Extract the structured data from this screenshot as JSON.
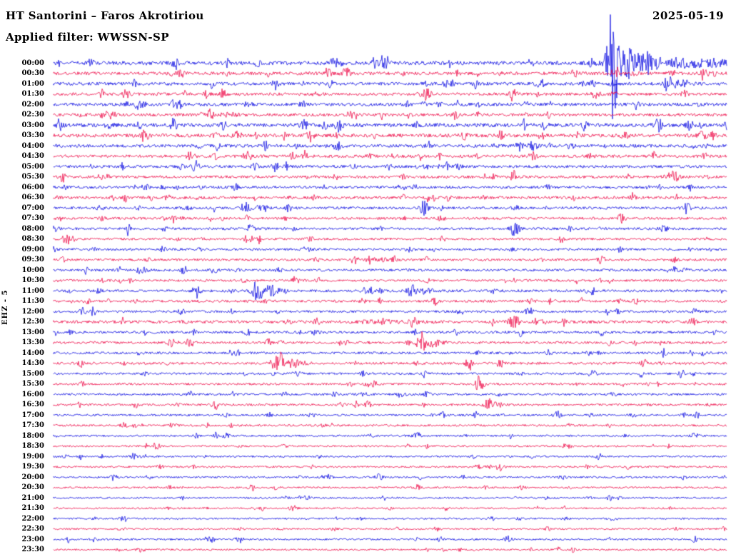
{
  "header": {
    "station_title": "HT Santorini – Faros Akrotiriou",
    "date": "2025-05-19",
    "filter_label": "Applied filter: WWSSN-SP",
    "channel_label": "EHZ - 5"
  },
  "colors": {
    "background": "#ffffff",
    "text": "#000000",
    "trace_blue": "#0000e0",
    "trace_red": "#ee0040"
  },
  "chart_data": {
    "type": "line",
    "title": "HT Santorini – Faros Akrotiriou",
    "subtitle": "Applied filter: WWSSN-SP",
    "date": "2025-05-19",
    "ylabel": "EHZ - 5",
    "layout": {
      "rows": 48,
      "minutes_per_row": 30,
      "row_color_pattern": [
        "blue",
        "red"
      ],
      "legend": "none",
      "grid": false
    },
    "row_times": [
      "00:00",
      "00:30",
      "01:00",
      "01:30",
      "02:00",
      "02:30",
      "03:00",
      "03:30",
      "04:00",
      "04:30",
      "05:00",
      "05:30",
      "06:00",
      "06:30",
      "07:00",
      "07:30",
      "08:00",
      "08:30",
      "09:00",
      "09:30",
      "10:00",
      "10:30",
      "11:00",
      "11:30",
      "12:00",
      "12:30",
      "13:00",
      "13:30",
      "14:00",
      "14:30",
      "15:00",
      "15:30",
      "16:00",
      "16:30",
      "17:00",
      "17:30",
      "18:00",
      "18:30",
      "19:00",
      "19:30",
      "20:00",
      "20:30",
      "21:00",
      "21:30",
      "22:00",
      "22:30",
      "23:00",
      "23:30"
    ],
    "row_noise": [
      2.6,
      2.2,
      2.2,
      2.0,
      2.2,
      2.0,
      2.6,
      2.4,
      2.2,
      2.0,
      1.9,
      1.9,
      1.8,
      1.9,
      1.8,
      1.7,
      1.7,
      1.6,
      1.6,
      1.6,
      1.7,
      1.6,
      1.8,
      1.7,
      1.6,
      2.0,
      1.7,
      1.7,
      1.6,
      1.7,
      1.5,
      1.5,
      1.5,
      1.5,
      1.4,
      1.4,
      1.3,
      1.3,
      1.3,
      1.3,
      1.3,
      1.2,
      1.2,
      1.2,
      1.2,
      1.2,
      1.3,
      1.2
    ],
    "events": [
      {
        "row": 0,
        "time": "00:00",
        "x": 0.302,
        "amp": 4,
        "sigma": 2
      },
      {
        "row": 0,
        "time": "00:00",
        "x": 0.8,
        "amp": 6,
        "sigma": 3
      },
      {
        "row": 0,
        "time": "00:00",
        "x": 0.83,
        "amp": 68,
        "sigma": 5,
        "spiky": true
      },
      {
        "row": 0,
        "time": "00:00",
        "x": 0.842,
        "amp": 34,
        "sigma": 9
      },
      {
        "row": 0,
        "time": "00:00",
        "x": 0.87,
        "amp": 10,
        "sigma": 18
      },
      {
        "row": 0,
        "time": "00:00",
        "x": 0.93,
        "amp": 5,
        "sigma": 30
      },
      {
        "row": 0,
        "time": "00:00",
        "x": 0.985,
        "amp": 3.5,
        "sigma": 15
      },
      {
        "row": 1,
        "time": "00:30",
        "x": 0.175,
        "amp": 3,
        "sigma": 2
      },
      {
        "row": 1,
        "time": "00:30",
        "x": 0.6,
        "amp": 3,
        "sigma": 2
      },
      {
        "row": 1,
        "time": "00:30",
        "x": 0.83,
        "amp": 3.5,
        "sigma": 4
      },
      {
        "row": 2,
        "time": "01:00",
        "x": 0.83,
        "amp": 3,
        "sigma": 3
      },
      {
        "row": 2,
        "time": "01:00",
        "x": 0.917,
        "amp": 9,
        "sigma": 4
      },
      {
        "row": 2,
        "time": "01:00",
        "x": 0.935,
        "amp": 4,
        "sigma": 10
      },
      {
        "row": 3,
        "time": "01:30",
        "x": 0.25,
        "amp": 3,
        "sigma": 2
      },
      {
        "row": 3,
        "time": "01:30",
        "x": 0.68,
        "amp": 3,
        "sigma": 2
      },
      {
        "row": 4,
        "time": "02:00",
        "x": 0.11,
        "amp": 3,
        "sigma": 2
      },
      {
        "row": 4,
        "time": "02:00",
        "x": 0.55,
        "amp": 2.5,
        "sigma": 2
      },
      {
        "row": 5,
        "time": "02:30",
        "x": 0.233,
        "amp": 7,
        "sigma": 4
      },
      {
        "row": 5,
        "time": "02:30",
        "x": 0.26,
        "amp": 3,
        "sigma": 8
      },
      {
        "row": 5,
        "time": "02:30",
        "x": 0.63,
        "amp": 3,
        "sigma": 2
      },
      {
        "row": 6,
        "time": "03:00",
        "x": 0.54,
        "amp": 3.5,
        "sigma": 2
      },
      {
        "row": 6,
        "time": "03:00",
        "x": 0.95,
        "amp": 3,
        "sigma": 2
      },
      {
        "row": 7,
        "time": "03:30",
        "x": 0.42,
        "amp": 3,
        "sigma": 2
      },
      {
        "row": 7,
        "time": "03:30",
        "x": 0.72,
        "amp": 3,
        "sigma": 2
      },
      {
        "row": 8,
        "time": "04:00",
        "x": 0.36,
        "amp": 2.5,
        "sigma": 2
      },
      {
        "row": 9,
        "time": "04:30",
        "x": 0.355,
        "amp": 4,
        "sigma": 2.5
      },
      {
        "row": 9,
        "time": "04:30",
        "x": 0.63,
        "amp": 3,
        "sigma": 2
      },
      {
        "row": 10,
        "time": "05:00",
        "x": 0.498,
        "amp": 3.5,
        "sigma": 2.5
      },
      {
        "row": 11,
        "time": "05:30",
        "x": 0.52,
        "amp": 3,
        "sigma": 2
      },
      {
        "row": 12,
        "time": "06:00",
        "x": 0.52,
        "amp": 3,
        "sigma": 2
      },
      {
        "row": 12,
        "time": "06:00",
        "x": 0.9,
        "amp": 2.5,
        "sigma": 2
      },
      {
        "row": 13,
        "time": "06:30",
        "x": 0.17,
        "amp": 4,
        "sigma": 2.5
      },
      {
        "row": 13,
        "time": "06:30",
        "x": 0.3,
        "amp": 3,
        "sigma": 2
      },
      {
        "row": 13,
        "time": "06:30",
        "x": 0.52,
        "amp": 3.5,
        "sigma": 2
      },
      {
        "row": 14,
        "time": "07:00",
        "x": 0.285,
        "amp": 8,
        "sigma": 4
      },
      {
        "row": 14,
        "time": "07:00",
        "x": 0.31,
        "amp": 3,
        "sigma": 8
      },
      {
        "row": 15,
        "time": "07:30",
        "x": 0.52,
        "amp": 2.5,
        "sigma": 2
      },
      {
        "row": 16,
        "time": "08:00",
        "x": 0.907,
        "amp": 3.5,
        "sigma": 5
      },
      {
        "row": 17,
        "time": "08:30",
        "x": 0.22,
        "amp": 2.5,
        "sigma": 2
      },
      {
        "row": 19,
        "time": "09:30",
        "x": 0.447,
        "amp": 5.5,
        "sigma": 3.5
      },
      {
        "row": 19,
        "time": "09:30",
        "x": 0.47,
        "amp": 2.5,
        "sigma": 7
      },
      {
        "row": 21,
        "time": "10:30",
        "x": 0.1,
        "amp": 2.5,
        "sigma": 2
      },
      {
        "row": 22,
        "time": "11:00",
        "x": 0.212,
        "amp": 10,
        "sigma": 3.5
      },
      {
        "row": 22,
        "time": "11:00",
        "x": 0.301,
        "amp": 15,
        "sigma": 5,
        "spiky": true
      },
      {
        "row": 22,
        "time": "11:00",
        "x": 0.32,
        "amp": 6,
        "sigma": 10
      },
      {
        "row": 22,
        "time": "11:00",
        "x": 0.532,
        "amp": 9,
        "sigma": 4
      },
      {
        "row": 22,
        "time": "11:00",
        "x": 0.55,
        "amp": 3.5,
        "sigma": 9
      },
      {
        "row": 25,
        "time": "12:30",
        "x": 0.5,
        "amp": 2,
        "sigma": 30
      },
      {
        "row": 27,
        "time": "13:30",
        "x": 0.546,
        "amp": 13,
        "sigma": 4.5
      },
      {
        "row": 27,
        "time": "13:30",
        "x": 0.565,
        "amp": 5,
        "sigma": 10
      },
      {
        "row": 29,
        "time": "14:30",
        "x": 0.336,
        "amp": 13,
        "sigma": 5
      },
      {
        "row": 29,
        "time": "14:30",
        "x": 0.356,
        "amp": 5,
        "sigma": 11
      },
      {
        "row": 30,
        "time": "15:00",
        "x": 0.95,
        "amp": 2.5,
        "sigma": 2
      },
      {
        "row": 33,
        "time": "16:30",
        "x": 0.646,
        "amp": 8,
        "sigma": 4
      },
      {
        "row": 33,
        "time": "16:30",
        "x": 0.662,
        "amp": 3,
        "sigma": 8
      },
      {
        "row": 34,
        "time": "17:00",
        "x": 0.498,
        "amp": 2.5,
        "sigma": 2
      },
      {
        "row": 34,
        "time": "17:00",
        "x": 0.749,
        "amp": 5,
        "sigma": 3.5
      },
      {
        "row": 40,
        "time": "20:00",
        "x": 0.088,
        "amp": 4,
        "sigma": 2.5
      },
      {
        "row": 40,
        "time": "20:00",
        "x": 0.366,
        "amp": 2,
        "sigma": 2
      },
      {
        "row": 43,
        "time": "21:30",
        "x": 0.758,
        "amp": 3,
        "sigma": 2.5
      },
      {
        "row": 46,
        "time": "23:00",
        "x": 0.54,
        "amp": 2,
        "sigma": 2
      }
    ]
  }
}
